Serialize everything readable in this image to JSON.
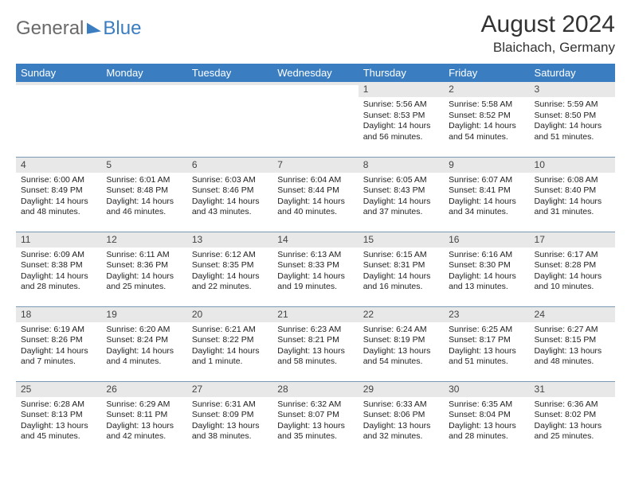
{
  "logo": {
    "general": "General",
    "blue": "Blue"
  },
  "header": {
    "title": "August 2024",
    "location": "Blaichach, Germany"
  },
  "colors": {
    "header_bg": "#3a7ec1",
    "header_fg": "#ffffff",
    "daynum_bg": "#e8e8e8",
    "rule": "#7a99b5"
  },
  "day_names": [
    "Sunday",
    "Monday",
    "Tuesday",
    "Wednesday",
    "Thursday",
    "Friday",
    "Saturday"
  ],
  "weeks": [
    [
      {
        "blank": true
      },
      {
        "blank": true
      },
      {
        "blank": true
      },
      {
        "blank": true
      },
      {
        "n": "1",
        "sr": "Sunrise: 5:56 AM",
        "ss": "Sunset: 8:53 PM",
        "dl": "Daylight: 14 hours and 56 minutes."
      },
      {
        "n": "2",
        "sr": "Sunrise: 5:58 AM",
        "ss": "Sunset: 8:52 PM",
        "dl": "Daylight: 14 hours and 54 minutes."
      },
      {
        "n": "3",
        "sr": "Sunrise: 5:59 AM",
        "ss": "Sunset: 8:50 PM",
        "dl": "Daylight: 14 hours and 51 minutes."
      }
    ],
    [
      {
        "n": "4",
        "sr": "Sunrise: 6:00 AM",
        "ss": "Sunset: 8:49 PM",
        "dl": "Daylight: 14 hours and 48 minutes."
      },
      {
        "n": "5",
        "sr": "Sunrise: 6:01 AM",
        "ss": "Sunset: 8:48 PM",
        "dl": "Daylight: 14 hours and 46 minutes."
      },
      {
        "n": "6",
        "sr": "Sunrise: 6:03 AM",
        "ss": "Sunset: 8:46 PM",
        "dl": "Daylight: 14 hours and 43 minutes."
      },
      {
        "n": "7",
        "sr": "Sunrise: 6:04 AM",
        "ss": "Sunset: 8:44 PM",
        "dl": "Daylight: 14 hours and 40 minutes."
      },
      {
        "n": "8",
        "sr": "Sunrise: 6:05 AM",
        "ss": "Sunset: 8:43 PM",
        "dl": "Daylight: 14 hours and 37 minutes."
      },
      {
        "n": "9",
        "sr": "Sunrise: 6:07 AM",
        "ss": "Sunset: 8:41 PM",
        "dl": "Daylight: 14 hours and 34 minutes."
      },
      {
        "n": "10",
        "sr": "Sunrise: 6:08 AM",
        "ss": "Sunset: 8:40 PM",
        "dl": "Daylight: 14 hours and 31 minutes."
      }
    ],
    [
      {
        "n": "11",
        "sr": "Sunrise: 6:09 AM",
        "ss": "Sunset: 8:38 PM",
        "dl": "Daylight: 14 hours and 28 minutes."
      },
      {
        "n": "12",
        "sr": "Sunrise: 6:11 AM",
        "ss": "Sunset: 8:36 PM",
        "dl": "Daylight: 14 hours and 25 minutes."
      },
      {
        "n": "13",
        "sr": "Sunrise: 6:12 AM",
        "ss": "Sunset: 8:35 PM",
        "dl": "Daylight: 14 hours and 22 minutes."
      },
      {
        "n": "14",
        "sr": "Sunrise: 6:13 AM",
        "ss": "Sunset: 8:33 PM",
        "dl": "Daylight: 14 hours and 19 minutes."
      },
      {
        "n": "15",
        "sr": "Sunrise: 6:15 AM",
        "ss": "Sunset: 8:31 PM",
        "dl": "Daylight: 14 hours and 16 minutes."
      },
      {
        "n": "16",
        "sr": "Sunrise: 6:16 AM",
        "ss": "Sunset: 8:30 PM",
        "dl": "Daylight: 14 hours and 13 minutes."
      },
      {
        "n": "17",
        "sr": "Sunrise: 6:17 AM",
        "ss": "Sunset: 8:28 PM",
        "dl": "Daylight: 14 hours and 10 minutes."
      }
    ],
    [
      {
        "n": "18",
        "sr": "Sunrise: 6:19 AM",
        "ss": "Sunset: 8:26 PM",
        "dl": "Daylight: 14 hours and 7 minutes."
      },
      {
        "n": "19",
        "sr": "Sunrise: 6:20 AM",
        "ss": "Sunset: 8:24 PM",
        "dl": "Daylight: 14 hours and 4 minutes."
      },
      {
        "n": "20",
        "sr": "Sunrise: 6:21 AM",
        "ss": "Sunset: 8:22 PM",
        "dl": "Daylight: 14 hours and 1 minute."
      },
      {
        "n": "21",
        "sr": "Sunrise: 6:23 AM",
        "ss": "Sunset: 8:21 PM",
        "dl": "Daylight: 13 hours and 58 minutes."
      },
      {
        "n": "22",
        "sr": "Sunrise: 6:24 AM",
        "ss": "Sunset: 8:19 PM",
        "dl": "Daylight: 13 hours and 54 minutes."
      },
      {
        "n": "23",
        "sr": "Sunrise: 6:25 AM",
        "ss": "Sunset: 8:17 PM",
        "dl": "Daylight: 13 hours and 51 minutes."
      },
      {
        "n": "24",
        "sr": "Sunrise: 6:27 AM",
        "ss": "Sunset: 8:15 PM",
        "dl": "Daylight: 13 hours and 48 minutes."
      }
    ],
    [
      {
        "n": "25",
        "sr": "Sunrise: 6:28 AM",
        "ss": "Sunset: 8:13 PM",
        "dl": "Daylight: 13 hours and 45 minutes."
      },
      {
        "n": "26",
        "sr": "Sunrise: 6:29 AM",
        "ss": "Sunset: 8:11 PM",
        "dl": "Daylight: 13 hours and 42 minutes."
      },
      {
        "n": "27",
        "sr": "Sunrise: 6:31 AM",
        "ss": "Sunset: 8:09 PM",
        "dl": "Daylight: 13 hours and 38 minutes."
      },
      {
        "n": "28",
        "sr": "Sunrise: 6:32 AM",
        "ss": "Sunset: 8:07 PM",
        "dl": "Daylight: 13 hours and 35 minutes."
      },
      {
        "n": "29",
        "sr": "Sunrise: 6:33 AM",
        "ss": "Sunset: 8:06 PM",
        "dl": "Daylight: 13 hours and 32 minutes."
      },
      {
        "n": "30",
        "sr": "Sunrise: 6:35 AM",
        "ss": "Sunset: 8:04 PM",
        "dl": "Daylight: 13 hours and 28 minutes."
      },
      {
        "n": "31",
        "sr": "Sunrise: 6:36 AM",
        "ss": "Sunset: 8:02 PM",
        "dl": "Daylight: 13 hours and 25 minutes."
      }
    ]
  ]
}
